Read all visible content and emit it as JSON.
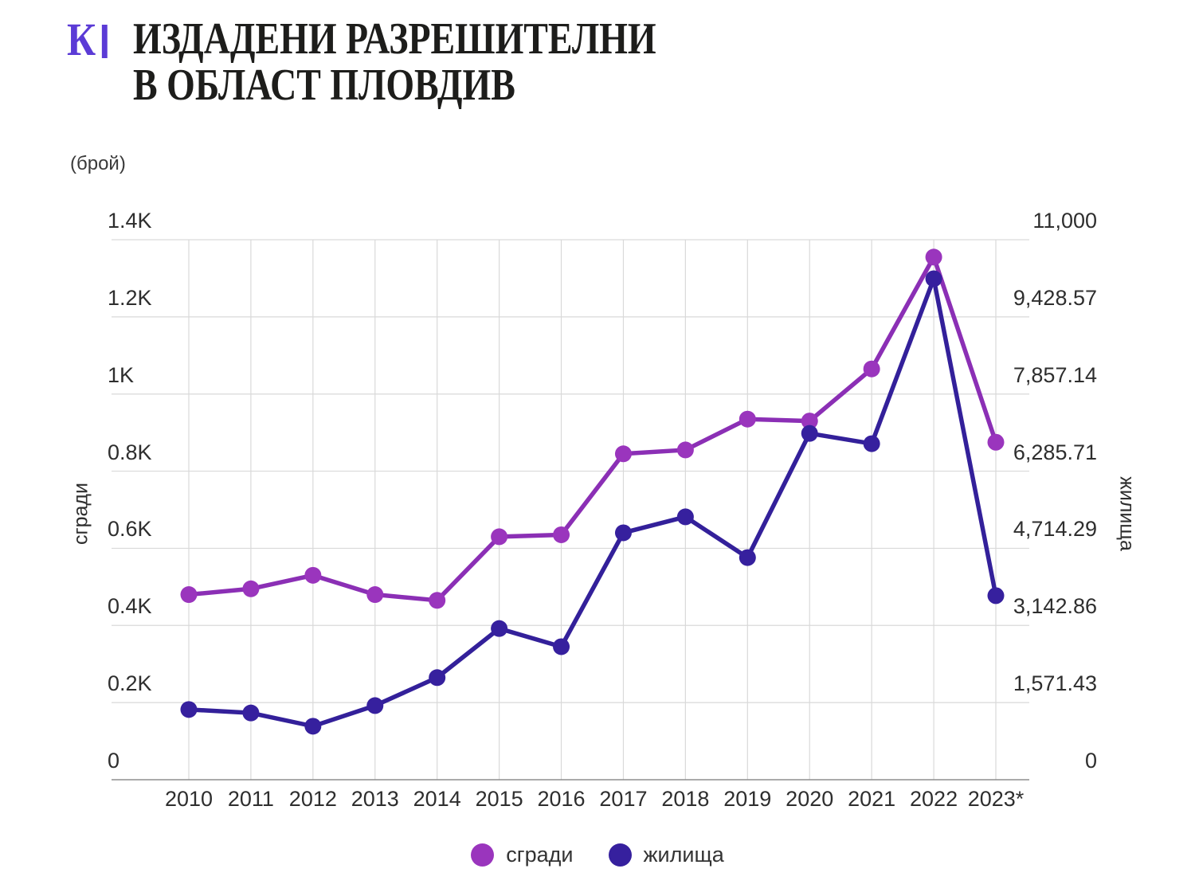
{
  "header": {
    "logo_text": "К",
    "title_line1": "ИЗДАДЕНИ РАЗРЕШИТЕЛНИ",
    "title_line2": "В ОБЛАСТ ПЛОВДИВ"
  },
  "chart_data": {
    "type": "line",
    "title": "ИЗДАДЕНИ РАЗРЕШИТЕЛНИ В ОБЛАСТ ПЛОВДИВ",
    "unit_label": "(брой)",
    "categories": [
      "2010",
      "2011",
      "2012",
      "2013",
      "2014",
      "2015",
      "2016",
      "2017",
      "2018",
      "2019",
      "2020",
      "2021",
      "2022",
      "2023*"
    ],
    "series": [
      {
        "name": "сгради",
        "axis": "left",
        "color": "#9a35bd",
        "line_color": "#8b2fb5",
        "values": [
          480,
          495,
          530,
          480,
          465,
          630,
          635,
          845,
          855,
          935,
          930,
          1065,
          1355,
          875
        ]
      },
      {
        "name": "жилища",
        "axis": "right",
        "color": "#36209e",
        "line_color": "#33209a",
        "values": [
          1430,
          1360,
          1090,
          1510,
          2080,
          3080,
          2710,
          5030,
          5355,
          4525,
          7055,
          6845,
          10205,
          3750
        ]
      }
    ],
    "left_axis": {
      "title": "сгради",
      "min": 0,
      "max": 1400,
      "tick_labels": [
        "0",
        "0.2K",
        "0.4K",
        "0.6K",
        "0.8K",
        "1K",
        "1.2K",
        "1.4K"
      ]
    },
    "right_axis": {
      "title": "жилища",
      "min": 0,
      "max": 11000,
      "tick_labels": [
        "0",
        "1,571.43",
        "3,142.86",
        "4,714.29",
        "6,285.71",
        "7,857.14",
        "9,428.57",
        "11,000"
      ]
    },
    "grid": true,
    "legend_position": "bottom"
  },
  "colors": {
    "logo": "#5b3bd6",
    "title_text": "#1d1d1b",
    "buildings": "#9a35bd",
    "buildings_line": "#8b2fb5",
    "dwellings": "#36209e",
    "grid": "#d9d9d9",
    "axis_line": "#8e8e8e",
    "tick_text": "#2e2e2e"
  }
}
